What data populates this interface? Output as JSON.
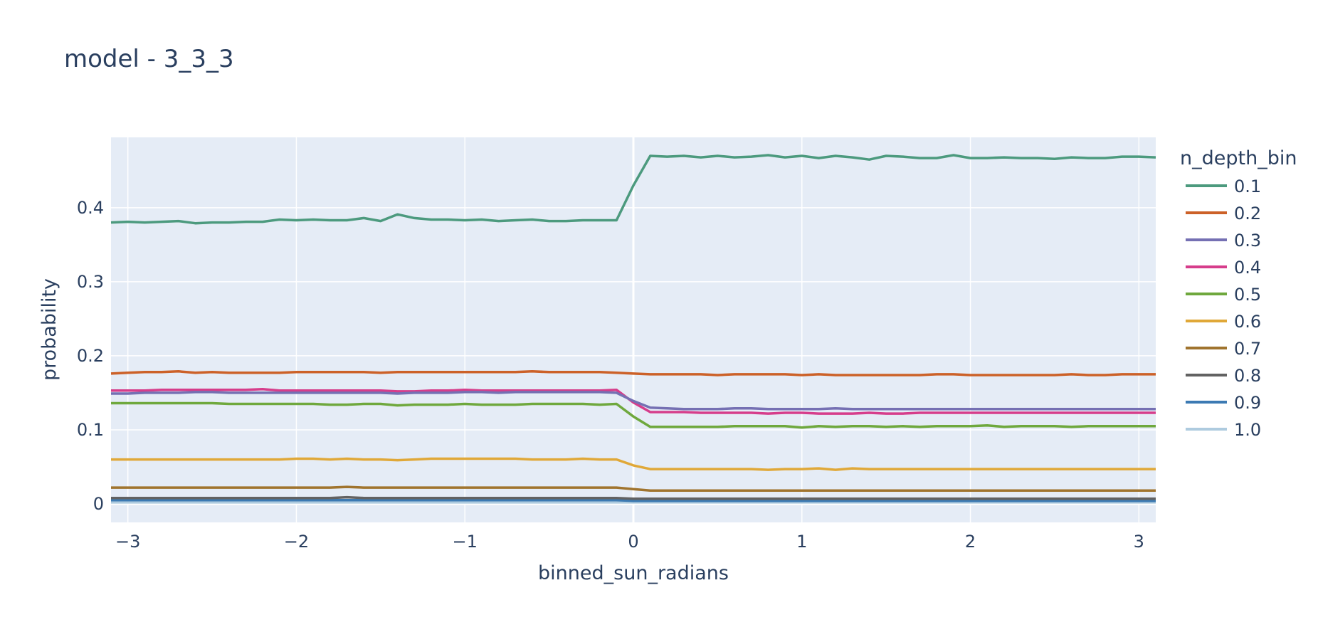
{
  "chart_data": {
    "type": "line",
    "title": "model - 3_3_3",
    "xlabel": "binned_sun_radians",
    "ylabel": "probability",
    "xlim": [
      -3.1,
      3.1
    ],
    "ylim": [
      -0.025,
      0.495
    ],
    "xticks": [
      -3,
      -2,
      -1,
      0,
      1,
      2,
      3
    ],
    "xtick_labels": [
      "−3",
      "−2",
      "−1",
      "0",
      "1",
      "2",
      "3"
    ],
    "yticks": [
      0,
      0.1,
      0.2,
      0.3,
      0.4
    ],
    "ytick_labels": [
      "0",
      "0.1",
      "0.2",
      "0.3",
      "0.4"
    ],
    "grid": true,
    "legend_title": "n_depth_bin",
    "legend_position": "right",
    "x": [
      -3.1,
      -3.0,
      -2.9,
      -2.8,
      -2.7,
      -2.6,
      -2.5,
      -2.4,
      -2.3,
      -2.2,
      -2.1,
      -2.0,
      -1.9,
      -1.8,
      -1.7,
      -1.6,
      -1.5,
      -1.4,
      -1.3,
      -1.2,
      -1.1,
      -1.0,
      -0.9,
      -0.8,
      -0.7,
      -0.6,
      -0.5,
      -0.4,
      -0.3,
      -0.2,
      -0.1,
      0.0,
      0.1,
      0.2,
      0.3,
      0.4,
      0.5,
      0.6,
      0.7,
      0.8,
      0.9,
      1.0,
      1.1,
      1.2,
      1.3,
      1.4,
      1.5,
      1.6,
      1.7,
      1.8,
      1.9,
      2.0,
      2.1,
      2.2,
      2.3,
      2.4,
      2.5,
      2.6,
      2.7,
      2.8,
      2.9,
      3.0,
      3.1
    ],
    "series": [
      {
        "name": "0.1",
        "color": "#4c9a7e",
        "values": [
          0.38,
          0.381,
          0.38,
          0.381,
          0.382,
          0.379,
          0.38,
          0.38,
          0.381,
          0.381,
          0.384,
          0.383,
          0.384,
          0.383,
          0.383,
          0.386,
          0.382,
          0.391,
          0.386,
          0.384,
          0.384,
          0.383,
          0.384,
          0.382,
          0.383,
          0.384,
          0.382,
          0.382,
          0.383,
          0.383,
          0.383,
          0.43,
          0.47,
          0.469,
          0.47,
          0.468,
          0.47,
          0.468,
          0.469,
          0.471,
          0.468,
          0.47,
          0.467,
          0.47,
          0.468,
          0.465,
          0.47,
          0.469,
          0.467,
          0.467,
          0.471,
          0.467,
          0.467,
          0.468,
          0.467,
          0.467,
          0.466,
          0.468,
          0.467,
          0.467,
          0.469,
          0.469,
          0.468
        ]
      },
      {
        "name": "0.2",
        "color": "#cc6128",
        "values": [
          0.176,
          0.177,
          0.178,
          0.178,
          0.179,
          0.177,
          0.178,
          0.177,
          0.177,
          0.177,
          0.177,
          0.178,
          0.178,
          0.178,
          0.178,
          0.178,
          0.177,
          0.178,
          0.178,
          0.178,
          0.178,
          0.178,
          0.178,
          0.178,
          0.178,
          0.179,
          0.178,
          0.178,
          0.178,
          0.178,
          0.177,
          0.176,
          0.175,
          0.175,
          0.175,
          0.175,
          0.174,
          0.175,
          0.175,
          0.175,
          0.175,
          0.174,
          0.175,
          0.174,
          0.174,
          0.174,
          0.174,
          0.174,
          0.174,
          0.175,
          0.175,
          0.174,
          0.174,
          0.174,
          0.174,
          0.174,
          0.174,
          0.175,
          0.174,
          0.174,
          0.175,
          0.175,
          0.175
        ]
      },
      {
        "name": "0.3",
        "color": "#7570b3",
        "values": [
          0.149,
          0.149,
          0.15,
          0.15,
          0.15,
          0.151,
          0.151,
          0.15,
          0.15,
          0.15,
          0.15,
          0.15,
          0.15,
          0.15,
          0.15,
          0.15,
          0.15,
          0.149,
          0.15,
          0.15,
          0.15,
          0.151,
          0.151,
          0.15,
          0.151,
          0.151,
          0.151,
          0.151,
          0.151,
          0.151,
          0.15,
          0.139,
          0.13,
          0.129,
          0.128,
          0.128,
          0.128,
          0.129,
          0.129,
          0.128,
          0.128,
          0.128,
          0.128,
          0.129,
          0.128,
          0.128,
          0.128,
          0.128,
          0.128,
          0.128,
          0.128,
          0.128,
          0.128,
          0.128,
          0.128,
          0.128,
          0.128,
          0.128,
          0.128,
          0.128,
          0.128,
          0.128,
          0.128
        ]
      },
      {
        "name": "0.4",
        "color": "#d63d8b",
        "values": [
          0.153,
          0.153,
          0.153,
          0.154,
          0.154,
          0.154,
          0.154,
          0.154,
          0.154,
          0.155,
          0.153,
          0.153,
          0.153,
          0.153,
          0.153,
          0.153,
          0.153,
          0.152,
          0.152,
          0.153,
          0.153,
          0.154,
          0.153,
          0.153,
          0.153,
          0.153,
          0.153,
          0.153,
          0.153,
          0.153,
          0.154,
          0.137,
          0.124,
          0.124,
          0.124,
          0.123,
          0.123,
          0.123,
          0.123,
          0.122,
          0.123,
          0.123,
          0.122,
          0.122,
          0.122,
          0.123,
          0.122,
          0.122,
          0.123,
          0.123,
          0.123,
          0.123,
          0.123,
          0.123,
          0.123,
          0.123,
          0.123,
          0.123,
          0.123,
          0.123,
          0.123,
          0.123,
          0.123
        ]
      },
      {
        "name": "0.5",
        "color": "#6fa83d",
        "values": [
          0.136,
          0.136,
          0.136,
          0.136,
          0.136,
          0.136,
          0.136,
          0.135,
          0.135,
          0.135,
          0.135,
          0.135,
          0.135,
          0.134,
          0.134,
          0.135,
          0.135,
          0.133,
          0.134,
          0.134,
          0.134,
          0.135,
          0.134,
          0.134,
          0.134,
          0.135,
          0.135,
          0.135,
          0.135,
          0.134,
          0.135,
          0.118,
          0.104,
          0.104,
          0.104,
          0.104,
          0.104,
          0.105,
          0.105,
          0.105,
          0.105,
          0.103,
          0.105,
          0.104,
          0.105,
          0.105,
          0.104,
          0.105,
          0.104,
          0.105,
          0.105,
          0.105,
          0.106,
          0.104,
          0.105,
          0.105,
          0.105,
          0.104,
          0.105,
          0.105,
          0.105,
          0.105,
          0.105
        ]
      },
      {
        "name": "0.6",
        "color": "#e0a838",
        "values": [
          0.06,
          0.06,
          0.06,
          0.06,
          0.06,
          0.06,
          0.06,
          0.06,
          0.06,
          0.06,
          0.06,
          0.061,
          0.061,
          0.06,
          0.061,
          0.06,
          0.06,
          0.059,
          0.06,
          0.061,
          0.061,
          0.061,
          0.061,
          0.061,
          0.061,
          0.06,
          0.06,
          0.06,
          0.061,
          0.06,
          0.06,
          0.052,
          0.047,
          0.047,
          0.047,
          0.047,
          0.047,
          0.047,
          0.047,
          0.046,
          0.047,
          0.047,
          0.048,
          0.046,
          0.048,
          0.047,
          0.047,
          0.047,
          0.047,
          0.047,
          0.047,
          0.047,
          0.047,
          0.047,
          0.047,
          0.047,
          0.047,
          0.047,
          0.047,
          0.047,
          0.047,
          0.047,
          0.047
        ]
      },
      {
        "name": "0.7",
        "color": "#a0742e",
        "values": [
          0.022,
          0.022,
          0.022,
          0.022,
          0.022,
          0.022,
          0.022,
          0.022,
          0.022,
          0.022,
          0.022,
          0.022,
          0.022,
          0.022,
          0.023,
          0.022,
          0.022,
          0.022,
          0.022,
          0.022,
          0.022,
          0.022,
          0.022,
          0.022,
          0.022,
          0.022,
          0.022,
          0.022,
          0.022,
          0.022,
          0.022,
          0.02,
          0.018,
          0.018,
          0.018,
          0.018,
          0.018,
          0.018,
          0.018,
          0.018,
          0.018,
          0.018,
          0.018,
          0.018,
          0.018,
          0.018,
          0.018,
          0.018,
          0.018,
          0.018,
          0.018,
          0.018,
          0.018,
          0.018,
          0.018,
          0.018,
          0.018,
          0.018,
          0.018,
          0.018,
          0.018,
          0.018,
          0.018
        ]
      },
      {
        "name": "0.8",
        "color": "#626262",
        "values": [
          0.008,
          0.008,
          0.008,
          0.008,
          0.008,
          0.008,
          0.008,
          0.008,
          0.008,
          0.008,
          0.008,
          0.008,
          0.008,
          0.008,
          0.009,
          0.008,
          0.008,
          0.008,
          0.008,
          0.008,
          0.008,
          0.008,
          0.008,
          0.008,
          0.008,
          0.008,
          0.008,
          0.008,
          0.008,
          0.008,
          0.008,
          0.007,
          0.007,
          0.007,
          0.007,
          0.007,
          0.007,
          0.007,
          0.007,
          0.007,
          0.007,
          0.007,
          0.007,
          0.007,
          0.007,
          0.007,
          0.007,
          0.007,
          0.007,
          0.007,
          0.007,
          0.007,
          0.007,
          0.007,
          0.007,
          0.007,
          0.007,
          0.007,
          0.007,
          0.007,
          0.007,
          0.007,
          0.007
        ]
      },
      {
        "name": "0.9",
        "color": "#3c7ab3",
        "values": [
          0.005,
          0.005,
          0.005,
          0.005,
          0.005,
          0.005,
          0.005,
          0.005,
          0.005,
          0.005,
          0.005,
          0.005,
          0.005,
          0.005,
          0.005,
          0.005,
          0.005,
          0.005,
          0.005,
          0.005,
          0.005,
          0.005,
          0.005,
          0.005,
          0.005,
          0.005,
          0.005,
          0.005,
          0.005,
          0.005,
          0.005,
          0.004,
          0.004,
          0.004,
          0.004,
          0.004,
          0.004,
          0.004,
          0.004,
          0.004,
          0.004,
          0.004,
          0.004,
          0.004,
          0.004,
          0.004,
          0.004,
          0.004,
          0.004,
          0.004,
          0.004,
          0.004,
          0.004,
          0.004,
          0.004,
          0.004,
          0.004,
          0.004,
          0.004,
          0.004,
          0.004,
          0.004,
          0.004
        ]
      },
      {
        "name": "1.0",
        "color": "#aecbdf",
        "values": [
          0.002,
          0.002,
          0.002,
          0.002,
          0.002,
          0.002,
          0.002,
          0.002,
          0.002,
          0.002,
          0.002,
          0.002,
          0.002,
          0.002,
          0.002,
          0.002,
          0.002,
          0.002,
          0.002,
          0.002,
          0.002,
          0.002,
          0.002,
          0.002,
          0.002,
          0.002,
          0.002,
          0.002,
          0.002,
          0.002,
          0.002,
          0.002,
          0.002,
          0.002,
          0.002,
          0.002,
          0.002,
          0.002,
          0.002,
          0.002,
          0.002,
          0.002,
          0.002,
          0.002,
          0.002,
          0.002,
          0.002,
          0.002,
          0.002,
          0.002,
          0.002,
          0.002,
          0.002,
          0.002,
          0.002,
          0.002,
          0.002,
          0.002,
          0.002,
          0.002,
          0.002,
          0.002,
          0.002
        ]
      }
    ]
  }
}
